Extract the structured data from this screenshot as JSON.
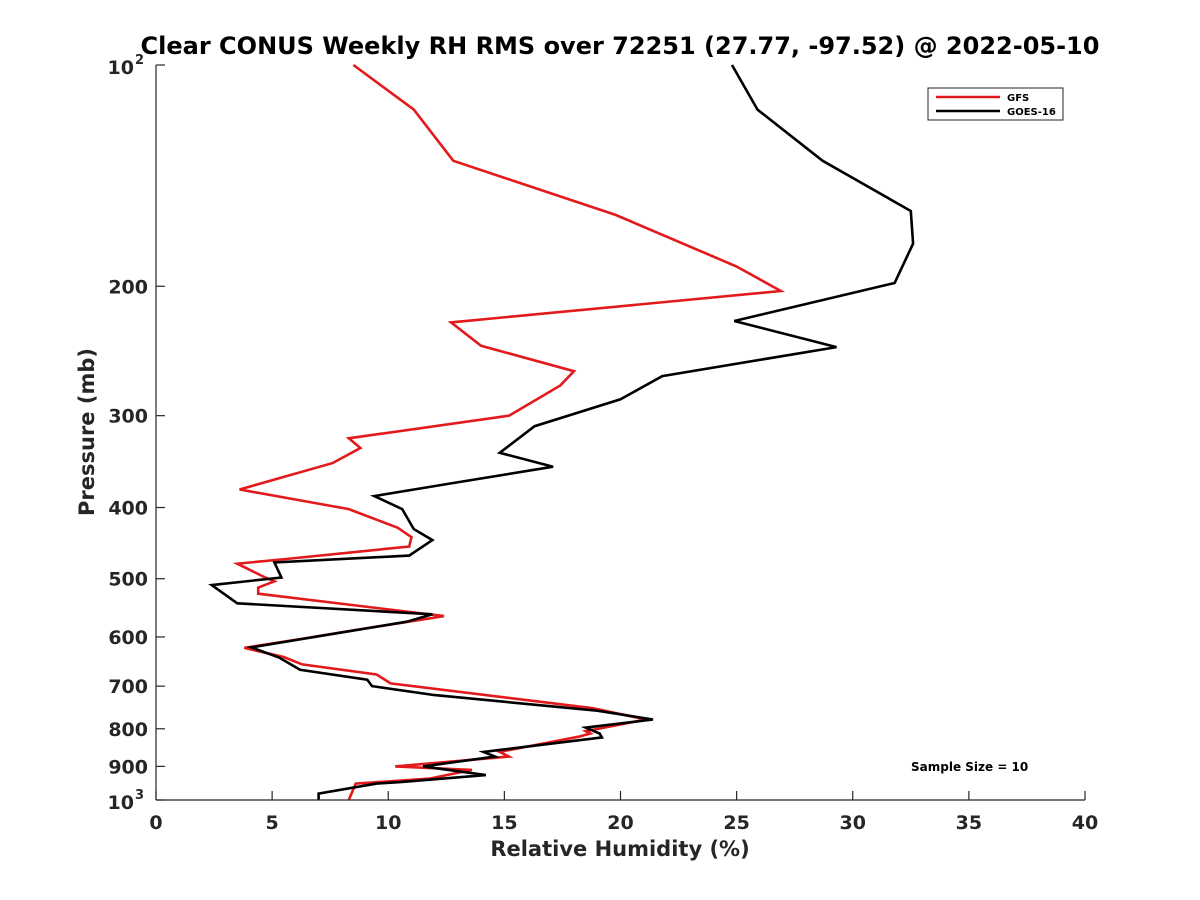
{
  "chart_data": {
    "type": "line",
    "title": "Clear CONUS Weekly RH RMS over 72251 (27.77, -97.52) @ 2022-05-10",
    "xlabel": "Relative Humidity (%)",
    "ylabel": "Pressure (mb)",
    "xlim": [
      0,
      40
    ],
    "ylim": [
      100,
      1000
    ],
    "y_scale": "log",
    "y_reversed": true,
    "grid": false,
    "legend_position": "top-right",
    "annotation": "Sample Size = 10",
    "x_ticks": [
      {
        "value": 0,
        "label": "0"
      },
      {
        "value": 5,
        "label": "5"
      },
      {
        "value": 10,
        "label": "10"
      },
      {
        "value": 15,
        "label": "15"
      },
      {
        "value": 20,
        "label": "20"
      },
      {
        "value": 25,
        "label": "25"
      },
      {
        "value": 30,
        "label": "30"
      },
      {
        "value": 35,
        "label": "35"
      },
      {
        "value": 40,
        "label": "40"
      }
    ],
    "y_ticks": [
      {
        "value": 100,
        "label": "10",
        "exp": "2"
      },
      {
        "value": 200,
        "label": "200"
      },
      {
        "value": 300,
        "label": "300"
      },
      {
        "value": 400,
        "label": "400"
      },
      {
        "value": 500,
        "label": "500"
      },
      {
        "value": 600,
        "label": "600"
      },
      {
        "value": 700,
        "label": "700"
      },
      {
        "value": 800,
        "label": "800"
      },
      {
        "value": 900,
        "label": "900"
      },
      {
        "value": 1000,
        "label": "10",
        "exp": "3"
      }
    ],
    "series": [
      {
        "name": "GFS",
        "color": "#e31a1c",
        "points": [
          [
            8.5,
            100
          ],
          [
            11.1,
            115
          ],
          [
            12.8,
            135
          ],
          [
            19.8,
            160
          ],
          [
            25.0,
            188
          ],
          [
            26.9,
            203
          ],
          [
            12.7,
            224
          ],
          [
            14.0,
            241
          ],
          [
            18.0,
            261
          ],
          [
            17.4,
            273
          ],
          [
            15.2,
            300
          ],
          [
            8.3,
            322
          ],
          [
            8.8,
            332
          ],
          [
            7.6,
            348
          ],
          [
            3.6,
            378
          ],
          [
            8.3,
            402
          ],
          [
            10.4,
            426
          ],
          [
            11.0,
            439
          ],
          [
            10.9,
            452
          ],
          [
            5.6,
            470
          ],
          [
            3.5,
            477
          ],
          [
            4.7,
            498
          ],
          [
            5.1,
            504
          ],
          [
            4.4,
            514
          ],
          [
            4.4,
            524
          ],
          [
            12.4,
            562
          ],
          [
            8.9,
            585
          ],
          [
            6.2,
            604
          ],
          [
            3.8,
            621
          ],
          [
            5.5,
            639
          ],
          [
            6.3,
            654
          ],
          [
            9.5,
            675
          ],
          [
            10.1,
            694
          ],
          [
            18.8,
            750
          ],
          [
            21.1,
            777
          ],
          [
            18.5,
            806
          ],
          [
            18.7,
            812
          ],
          [
            18.2,
            820
          ],
          [
            14.8,
            860
          ],
          [
            15.2,
            873
          ],
          [
            10.3,
            900
          ],
          [
            13.6,
            910
          ],
          [
            11.8,
            935
          ],
          [
            8.6,
            950
          ],
          [
            8.3,
            1000
          ]
        ]
      },
      {
        "name": "GOES-16",
        "color": "#000000",
        "points": [
          [
            24.8,
            100
          ],
          [
            25.9,
            115
          ],
          [
            28.7,
            135
          ],
          [
            32.5,
            158
          ],
          [
            32.6,
            175
          ],
          [
            31.8,
            198
          ],
          [
            24.9,
            223
          ],
          [
            29.3,
            242
          ],
          [
            21.8,
            265
          ],
          [
            20.0,
            285
          ],
          [
            16.3,
            310
          ],
          [
            14.8,
            337
          ],
          [
            17.1,
            352
          ],
          [
            12.9,
            370
          ],
          [
            9.4,
            386
          ],
          [
            10.6,
            402
          ],
          [
            11.1,
            428
          ],
          [
            11.9,
            443
          ],
          [
            10.9,
            465
          ],
          [
            5.1,
            475
          ],
          [
            5.4,
            498
          ],
          [
            2.4,
            510
          ],
          [
            3.5,
            540
          ],
          [
            11.9,
            559
          ],
          [
            10.8,
            572
          ],
          [
            7.8,
            593
          ],
          [
            4.1,
            620
          ],
          [
            5.3,
            640
          ],
          [
            6.2,
            665
          ],
          [
            9.1,
            686
          ],
          [
            9.3,
            700
          ],
          [
            12.0,
            720
          ],
          [
            19.0,
            756
          ],
          [
            21.4,
            777
          ],
          [
            18.5,
            797
          ],
          [
            19.1,
            812
          ],
          [
            19.2,
            822
          ],
          [
            14.1,
            860
          ],
          [
            14.6,
            873
          ],
          [
            11.5,
            900
          ],
          [
            14.2,
            925
          ],
          [
            10.6,
            945
          ],
          [
            9.5,
            950
          ],
          [
            7.0,
            980
          ],
          [
            7.0,
            1000
          ]
        ]
      }
    ]
  }
}
